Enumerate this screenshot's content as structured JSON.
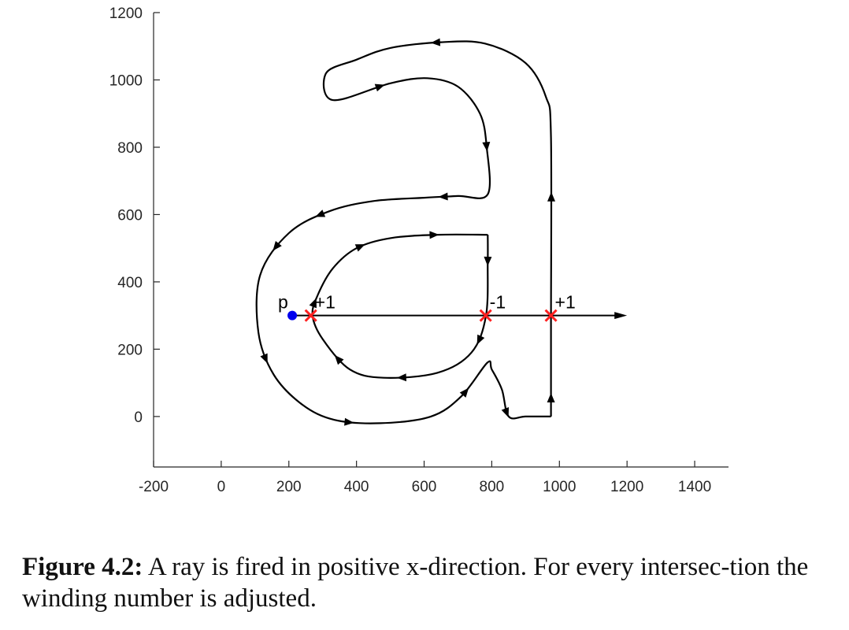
{
  "chart_data": {
    "type": "line",
    "title": "",
    "xlabel": "",
    "ylabel": "",
    "xlim": [
      -200,
      1500
    ],
    "ylim": [
      -150,
      1200
    ],
    "xticks": [
      -200,
      0,
      200,
      400,
      600,
      800,
      1000,
      1200,
      1400
    ],
    "yticks": [
      0,
      200,
      400,
      600,
      800,
      1000,
      1200
    ],
    "grid": false,
    "glyph": {
      "outer": [
        [
          975,
          0
        ],
        [
          975,
          275
        ],
        [
          975,
          830
        ],
        [
          960,
          950
        ],
        [
          900,
          1050
        ],
        [
          780,
          1108
        ],
        [
          650,
          1112
        ],
        [
          500,
          1095
        ],
        [
          400,
          1060
        ],
        [
          310,
          1020
        ],
        [
          330,
          940
        ],
        [
          500,
          990
        ],
        [
          610,
          1005
        ],
        [
          700,
          980
        ],
        [
          765,
          900
        ],
        [
          785,
          800
        ],
        [
          788,
          660
        ],
        [
          700,
          655
        ],
        [
          600,
          650
        ],
        [
          450,
          640
        ],
        [
          320,
          610
        ],
        [
          200,
          545
        ],
        [
          115,
          420
        ],
        [
          110,
          250
        ],
        [
          155,
          125
        ],
        [
          240,
          35
        ],
        [
          335,
          -10
        ],
        [
          470,
          -20
        ],
        [
          620,
          0
        ],
        [
          710,
          60
        ],
        [
          787,
          160
        ],
        [
          800,
          140
        ],
        [
          830,
          80
        ],
        [
          850,
          0
        ],
        [
          900,
          0
        ],
        [
          975,
          0
        ]
      ],
      "counter": [
        [
          788,
          540
        ],
        [
          788,
          460
        ],
        [
          783,
          300
        ],
        [
          740,
          190
        ],
        [
          640,
          130
        ],
        [
          480,
          115
        ],
        [
          380,
          140
        ],
        [
          300,
          230
        ],
        [
          270,
          300
        ],
        [
          285,
          360
        ],
        [
          330,
          440
        ],
        [
          400,
          500
        ],
        [
          500,
          530
        ],
        [
          640,
          540
        ],
        [
          788,
          540
        ]
      ],
      "outer_arrow_t": [
        0.012,
        0.14,
        0.29,
        0.415,
        0.51,
        0.57,
        0.65,
        0.685,
        0.76,
        0.83,
        0.91,
        0.97
      ],
      "counter_arrow_t": [
        0.05,
        0.2,
        0.37,
        0.5,
        0.62,
        0.76,
        0.9
      ]
    },
    "point": {
      "label": "p",
      "x": 210,
      "y": 300,
      "color": "#0000ee"
    },
    "ray": {
      "x": [
        210,
        1200
      ],
      "y": [
        300,
        300
      ]
    },
    "intersections": [
      {
        "x": 265,
        "y": 300,
        "label": "+1",
        "color": "#ff2020"
      },
      {
        "x": 782,
        "y": 300,
        "label": "-1",
        "color": "#ff2020"
      },
      {
        "x": 975,
        "y": 300,
        "label": "+1",
        "color": "#ff2020"
      }
    ]
  },
  "caption": {
    "label": "Figure 4.2:",
    "text": "A ray is fired in positive x-direction. For every intersec-tion the winding number is adjusted."
  }
}
